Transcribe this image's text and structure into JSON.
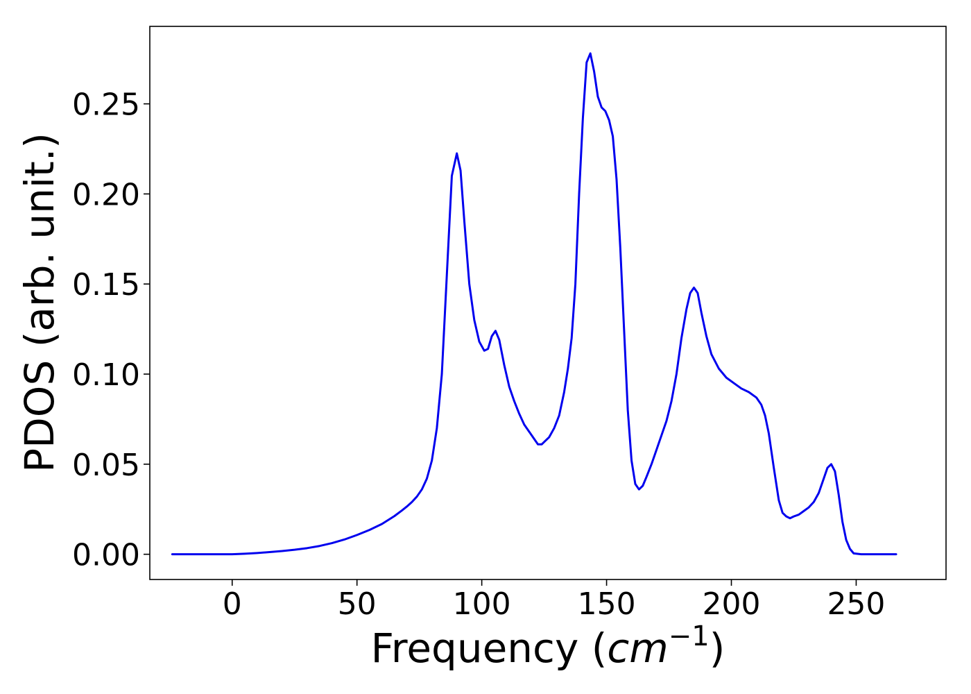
{
  "chart_data": {
    "type": "line",
    "title": "",
    "xlabel": {
      "prefix": "Frequency (",
      "unit_italic": "cm",
      "unit_exponent": "−1",
      "suffix": ")"
    },
    "ylabel": "PDOS (arb. unit.)",
    "xlim": [
      -33,
      286
    ],
    "ylim": [
      -0.014,
      0.293
    ],
    "xticks": [
      0,
      50,
      100,
      150,
      200,
      250
    ],
    "yticks": [
      0.0,
      0.05,
      0.1,
      0.15,
      0.2,
      0.25
    ],
    "xtick_labels": [
      "0",
      "50",
      "100",
      "150",
      "200",
      "250"
    ],
    "ytick_labels": [
      "0.00",
      "0.05",
      "0.10",
      "0.15",
      "0.20",
      "0.25"
    ],
    "grid": false,
    "series": [
      {
        "color": "#0000ee",
        "x": [
          -24,
          -10,
          0,
          5,
          10,
          15,
          20,
          25,
          30,
          35,
          40,
          45,
          50,
          55,
          60,
          65,
          68,
          70,
          72,
          74,
          76,
          78,
          80,
          82,
          84,
          86,
          88,
          90,
          91.5,
          93,
          95,
          97,
          99,
          101,
          102.5,
          104,
          105.5,
          107,
          109,
          111,
          113,
          115,
          117,
          119,
          121,
          122.5,
          124,
          125.5,
          127,
          129,
          131,
          133,
          134.5,
          136,
          137.5,
          139,
          140.5,
          142,
          143.5,
          145,
          146.5,
          148,
          149.5,
          151,
          152.5,
          154,
          155.5,
          157,
          158.5,
          160,
          161.5,
          163,
          164.5,
          166,
          168,
          170,
          172,
          174,
          176,
          178,
          180,
          182,
          183.5,
          185,
          186.5,
          188,
          190,
          192,
          195,
          198,
          201,
          204,
          207,
          210,
          212,
          213.5,
          215,
          217,
          219,
          220.5,
          222,
          223.5,
          225,
          227,
          229,
          231,
          233,
          235,
          237,
          238.5,
          240,
          241.5,
          243,
          244.5,
          246,
          247.5,
          249,
          252,
          256,
          260,
          266
        ],
        "y": [
          0.0,
          0.0,
          0.0,
          0.0003,
          0.0007,
          0.0012,
          0.0018,
          0.0025,
          0.0034,
          0.0046,
          0.0062,
          0.0082,
          0.0107,
          0.0135,
          0.0168,
          0.0212,
          0.0243,
          0.0265,
          0.029,
          0.032,
          0.036,
          0.042,
          0.052,
          0.07,
          0.1,
          0.155,
          0.21,
          0.2225,
          0.213,
          0.185,
          0.15,
          0.13,
          0.118,
          0.113,
          0.114,
          0.121,
          0.124,
          0.119,
          0.105,
          0.093,
          0.085,
          0.078,
          0.072,
          0.068,
          0.064,
          0.061,
          0.061,
          0.063,
          0.065,
          0.07,
          0.077,
          0.09,
          0.103,
          0.12,
          0.15,
          0.2,
          0.242,
          0.273,
          0.278,
          0.268,
          0.254,
          0.248,
          0.246,
          0.241,
          0.232,
          0.208,
          0.17,
          0.125,
          0.08,
          0.052,
          0.039,
          0.036,
          0.038,
          0.043,
          0.05,
          0.058,
          0.066,
          0.074,
          0.085,
          0.1,
          0.12,
          0.136,
          0.145,
          0.148,
          0.145,
          0.134,
          0.121,
          0.111,
          0.103,
          0.098,
          0.095,
          0.092,
          0.09,
          0.087,
          0.083,
          0.077,
          0.067,
          0.048,
          0.03,
          0.023,
          0.021,
          0.02,
          0.021,
          0.022,
          0.024,
          0.026,
          0.029,
          0.034,
          0.042,
          0.048,
          0.05,
          0.046,
          0.033,
          0.018,
          0.008,
          0.003,
          0.0005,
          0.0,
          0.0,
          0.0,
          0.0
        ]
      }
    ]
  }
}
